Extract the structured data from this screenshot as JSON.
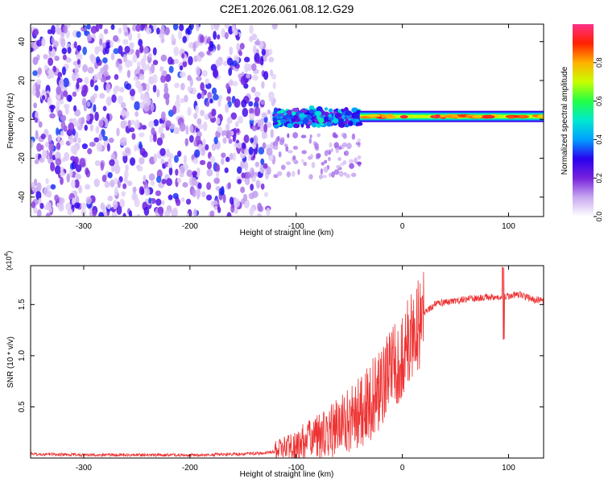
{
  "page_title": "C2E1.2026.061.08.12.G29",
  "chart_data": [
    {
      "type": "heatmap",
      "xlabel": "Height of straight line (km)",
      "ylabel": "Frequency (Hz)",
      "xlim": [
        -350,
        133
      ],
      "ylim": [
        -50,
        49
      ],
      "xticks": [
        -300,
        -200,
        -100,
        0,
        100
      ],
      "yticks": [
        -40,
        -20,
        0,
        20,
        40
      ],
      "colorbar": {
        "label": "Normalized spectral amplitude",
        "range": [
          0,
          1
        ],
        "ticks": [
          0.0,
          0.2,
          0.4,
          0.6,
          0.8
        ],
        "colors": [
          "#ffffff",
          "#c8a8f0",
          "#7722dd",
          "#2a00ee",
          "#00a0ff",
          "#00e8d0",
          "#22ff44",
          "#c8ff00",
          "#ffb000",
          "#ff2000",
          "#ff3088"
        ]
      },
      "regions": [
        {
          "x": [
            -350,
            -120
          ],
          "freq": [
            -50,
            49
          ],
          "amplitude": 0.1,
          "pattern": "noise"
        },
        {
          "x": [
            -120,
            -40
          ],
          "freq": [
            -4,
            6
          ],
          "amplitude": 0.35,
          "pattern": "speckle"
        },
        {
          "x": [
            -40,
            133
          ],
          "freq": [
            -1,
            4
          ],
          "amplitude": 0.7,
          "pattern": "carrier",
          "center_freq": 1.5
        }
      ]
    },
    {
      "type": "line",
      "xlabel": "Height of straight line (km)",
      "ylabel": "SNR (10 * v/v)",
      "y_multiplier": "(x10",
      "y_multiplier_exp": "4",
      "xlim": [
        -350,
        133
      ],
      "ylim": [
        0,
        1.88
      ],
      "xticks": [
        -300,
        -200,
        -100,
        0,
        100
      ],
      "yticks": [
        0.5,
        1.0,
        1.5
      ],
      "color": "#ee3333",
      "series": {
        "x": [
          -350,
          -300,
          -200,
          -150,
          -130,
          -115,
          -100,
          -90,
          -80,
          -70,
          -60,
          -50,
          -40,
          -30,
          -20,
          -10,
          0,
          10,
          20,
          30,
          40,
          60,
          80,
          90,
          95,
          100,
          110,
          120,
          133
        ],
        "y": [
          0.04,
          0.03,
          0.03,
          0.04,
          0.05,
          0.07,
          0.12,
          0.16,
          0.2,
          0.25,
          0.3,
          0.38,
          0.45,
          0.55,
          0.7,
          0.85,
          1.0,
          1.2,
          1.4,
          1.5,
          1.52,
          1.55,
          1.57,
          1.58,
          1.56,
          1.58,
          1.6,
          1.56,
          1.53
        ]
      }
    }
  ]
}
